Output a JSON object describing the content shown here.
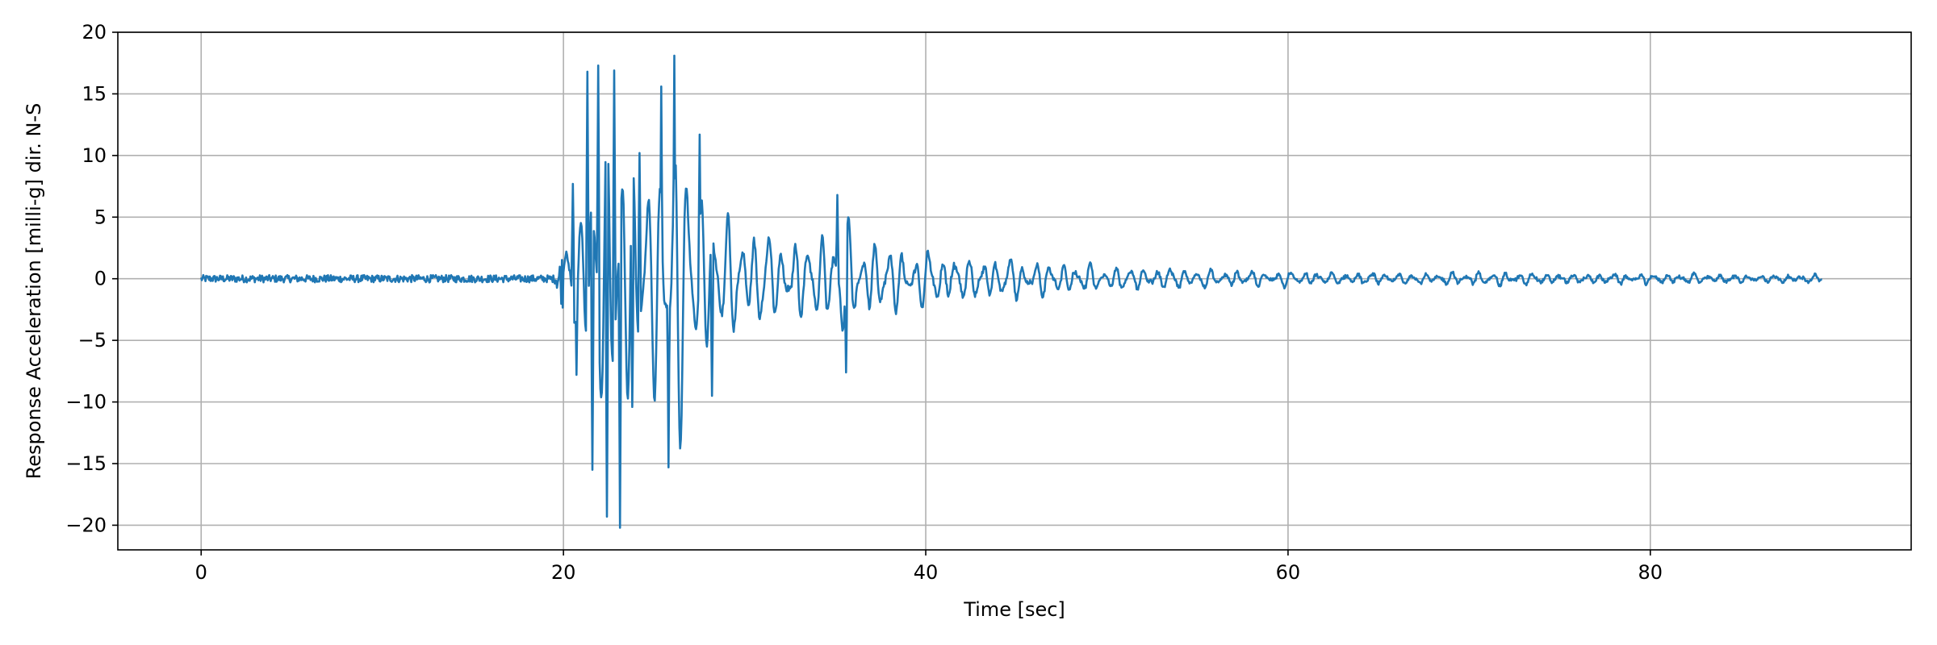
{
  "chart_data": {
    "type": "line",
    "title": "",
    "xlabel": "Time [sec]",
    "ylabel": "Response Acceleration [milli-g] dir. N-S",
    "xlim": [
      -4.6,
      94.4
    ],
    "ylim": [
      -22,
      20
    ],
    "xticks": [
      0,
      20,
      40,
      60,
      80
    ],
    "yticks": [
      -20,
      -15,
      -10,
      -5,
      0,
      5,
      10,
      15,
      20
    ],
    "xtick_labels": [
      "0",
      "20",
      "40",
      "60",
      "80"
    ],
    "ytick_labels": [
      "−20",
      "−15",
      "−10",
      "−5",
      "0",
      "5",
      "10",
      "15",
      "20"
    ],
    "grid": true,
    "legend": "none",
    "series_color": "#1f77b4",
    "x_end": 89.5,
    "sample_interval": 0.04,
    "envelope": {
      "t": [
        0,
        19.5,
        20.3,
        21.0,
        21.5,
        22.0,
        22.6,
        23.1,
        23.6,
        24.2,
        24.8,
        25.6,
        26.2,
        26.8,
        27.6,
        28.4,
        29.2,
        30.0,
        31.0,
        32.0,
        33.0,
        34.0,
        35.0,
        35.8,
        37.0,
        38.5,
        40.0,
        42.0,
        44.0,
        46.0,
        48.0,
        50.0,
        52.5,
        55.0,
        57.0,
        60.0,
        63.0,
        66.0,
        68.0,
        71.5,
        74.0,
        77.5,
        80.0,
        84.0,
        86.5,
        89.5
      ],
      "amp": [
        0.3,
        0.3,
        4.0,
        8.0,
        16.5,
        13.0,
        17.0,
        19.0,
        15.0,
        10.0,
        9.0,
        15.5,
        17.5,
        11.0,
        10.0,
        7.0,
        6.5,
        5.5,
        5.0,
        4.5,
        4.3,
        4.0,
        6.5,
        5.0,
        3.6,
        3.2,
        3.0,
        2.5,
        2.2,
        1.8,
        1.5,
        1.2,
        1.2,
        1.0,
        0.8,
        0.7,
        0.6,
        0.6,
        0.5,
        0.7,
        0.5,
        0.5,
        0.5,
        0.4,
        0.4,
        0.4
      ]
    },
    "peaks": [
      {
        "t": 20.5,
        "y": 7.7
      },
      {
        "t": 20.7,
        "y": -7.8
      },
      {
        "t": 21.3,
        "y": 16.8
      },
      {
        "t": 21.6,
        "y": -15.5
      },
      {
        "t": 21.9,
        "y": 17.3
      },
      {
        "t": 22.4,
        "y": -19.3
      },
      {
        "t": 22.8,
        "y": 16.9
      },
      {
        "t": 23.1,
        "y": -20.2
      },
      {
        "t": 23.8,
        "y": -10.4
      },
      {
        "t": 24.2,
        "y": 10.2
      },
      {
        "t": 25.4,
        "y": 15.6
      },
      {
        "t": 25.8,
        "y": -15.3
      },
      {
        "t": 26.1,
        "y": 18.1
      },
      {
        "t": 27.5,
        "y": 11.7
      },
      {
        "t": 28.2,
        "y": -9.5
      },
      {
        "t": 35.1,
        "y": 6.8
      },
      {
        "t": 35.6,
        "y": -7.6
      }
    ]
  }
}
